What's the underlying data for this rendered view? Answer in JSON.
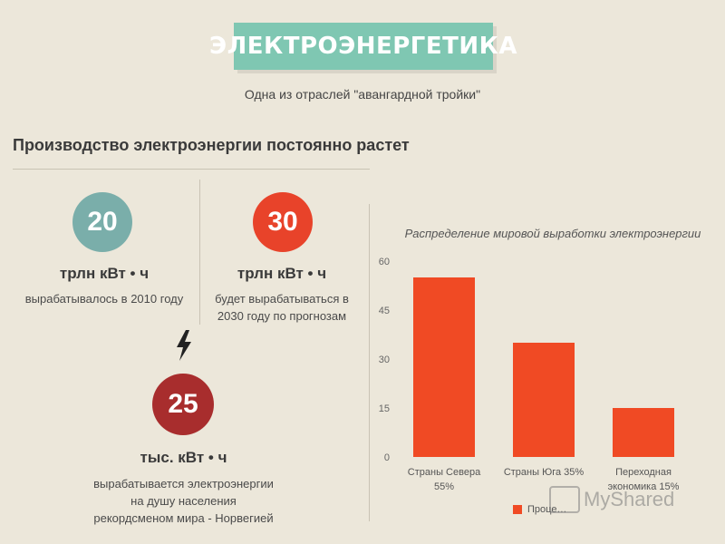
{
  "header": {
    "title": "ЭЛЕКТРОЭНЕРГЕТИКА",
    "subtitle": "Одна из отраслей \"авангардной тройки\""
  },
  "section": {
    "heading": "Производство электроэнергии постоянно растет"
  },
  "stats": [
    {
      "value": "20",
      "unit": "трлн кВт • ч",
      "desc": "вырабатывалось в 2010 году",
      "color": "#7aaeaa"
    },
    {
      "value": "30",
      "unit": "трлн кВт • ч",
      "desc_lines": [
        "будет вырабатываться в",
        "2030 году по прогнозам"
      ],
      "color": "#e8432a"
    },
    {
      "value": "25",
      "unit": "тыс. кВт • ч",
      "desc_lines": [
        "вырабатывается электроэнергии",
        "на душу населения",
        "рекордсменом мира - Норвегией"
      ],
      "color": "#a82d2d"
    }
  ],
  "chart_data": {
    "type": "bar",
    "title": "Распределение мировой выработки электроэнергии",
    "categories": [
      [
        "Страны Севера",
        "55%"
      ],
      [
        "Страны Юга 35%"
      ],
      [
        "Переходная",
        "экономика 15%"
      ]
    ],
    "values": [
      55,
      35,
      15
    ],
    "ylim": [
      0,
      60
    ],
    "yticks": [
      0,
      15,
      30,
      45,
      60
    ],
    "series": [
      {
        "name": "Проце…",
        "values": [
          55,
          35,
          15
        ]
      }
    ],
    "bar_color": "#f04a24",
    "grid": false,
    "legend": "bottom"
  },
  "watermark": {
    "text": "MyShared"
  }
}
